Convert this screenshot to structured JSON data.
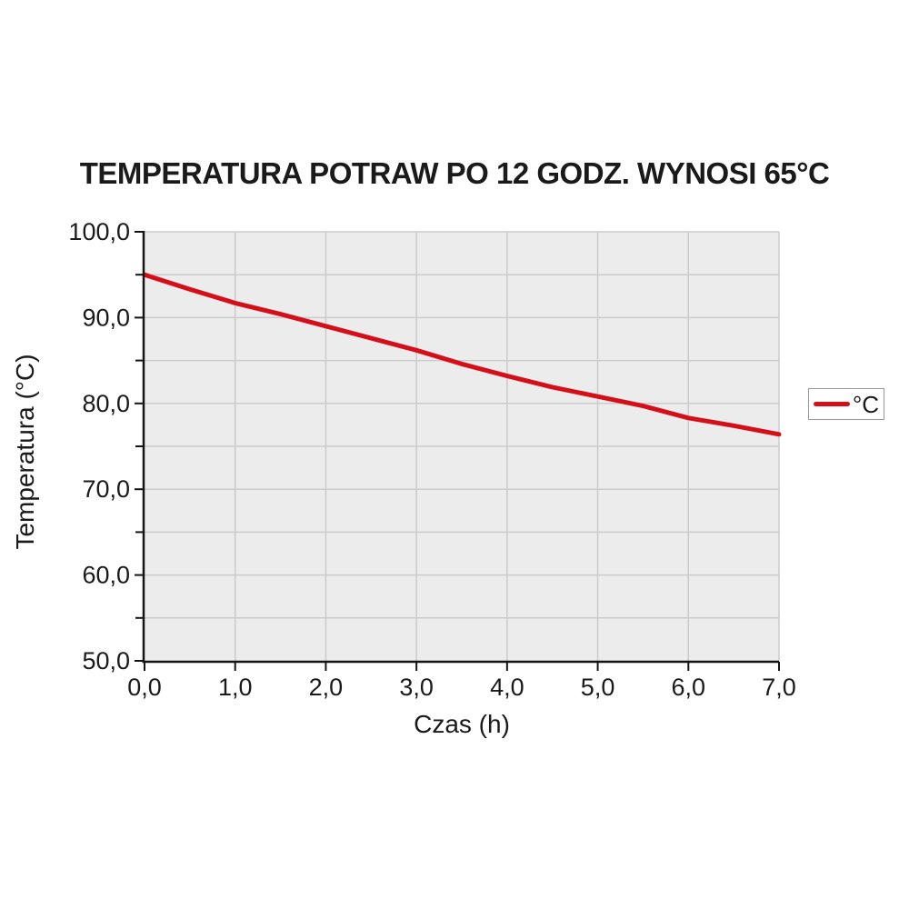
{
  "chart_data": {
    "type": "line",
    "title": "TEMPERATURA POTRAW PO 12 GODZ. WYNOSI 65°C",
    "xlabel": "Czas (h)",
    "ylabel": "Temperatura (°C)",
    "x": [
      0,
      0.5,
      1,
      1.5,
      2,
      2.5,
      3,
      3.5,
      4,
      4.5,
      5,
      5.5,
      6,
      6.5,
      7
    ],
    "series": [
      {
        "name": "°C",
        "values": [
          95.0,
          93.3,
          91.7,
          90.4,
          89.0,
          87.6,
          86.2,
          84.6,
          83.2,
          81.9,
          80.8,
          79.7,
          78.3,
          77.4,
          76.4
        ]
      }
    ],
    "xlim": [
      0,
      7
    ],
    "ylim": [
      50,
      100
    ],
    "x_ticks": [
      {
        "v": 0,
        "label": "0,0"
      },
      {
        "v": 1,
        "label": "1,0"
      },
      {
        "v": 2,
        "label": "2,0"
      },
      {
        "v": 3,
        "label": "3,0"
      },
      {
        "v": 4,
        "label": "4,0"
      },
      {
        "v": 5,
        "label": "5,0"
      },
      {
        "v": 6,
        "label": "6,0"
      },
      {
        "v": 7,
        "label": "7,0"
      }
    ],
    "y_ticks": [
      {
        "v": 100,
        "label": "100,0"
      },
      {
        "v": 90,
        "label": "90,0"
      },
      {
        "v": 80,
        "label": "80,0"
      },
      {
        "v": 70,
        "label": "70,0"
      },
      {
        "v": 60,
        "label": "60,0"
      },
      {
        "v": 50,
        "label": "50,0"
      }
    ],
    "y_minor_ticks": [
      95,
      85,
      75,
      65,
      55
    ],
    "grid": {
      "horizontal_step": 5,
      "vertical_step": 1,
      "visible": true
    },
    "legend": {
      "label": "°C",
      "position": "right"
    }
  },
  "colors": {
    "line": "#d40f1a",
    "plot_background": "#ececec",
    "gridline": "#cbcbcb",
    "axis": "#141414",
    "text": "#1a1a1a",
    "legend_border": "#9a9a9a",
    "page_background": "#ffffff"
  }
}
